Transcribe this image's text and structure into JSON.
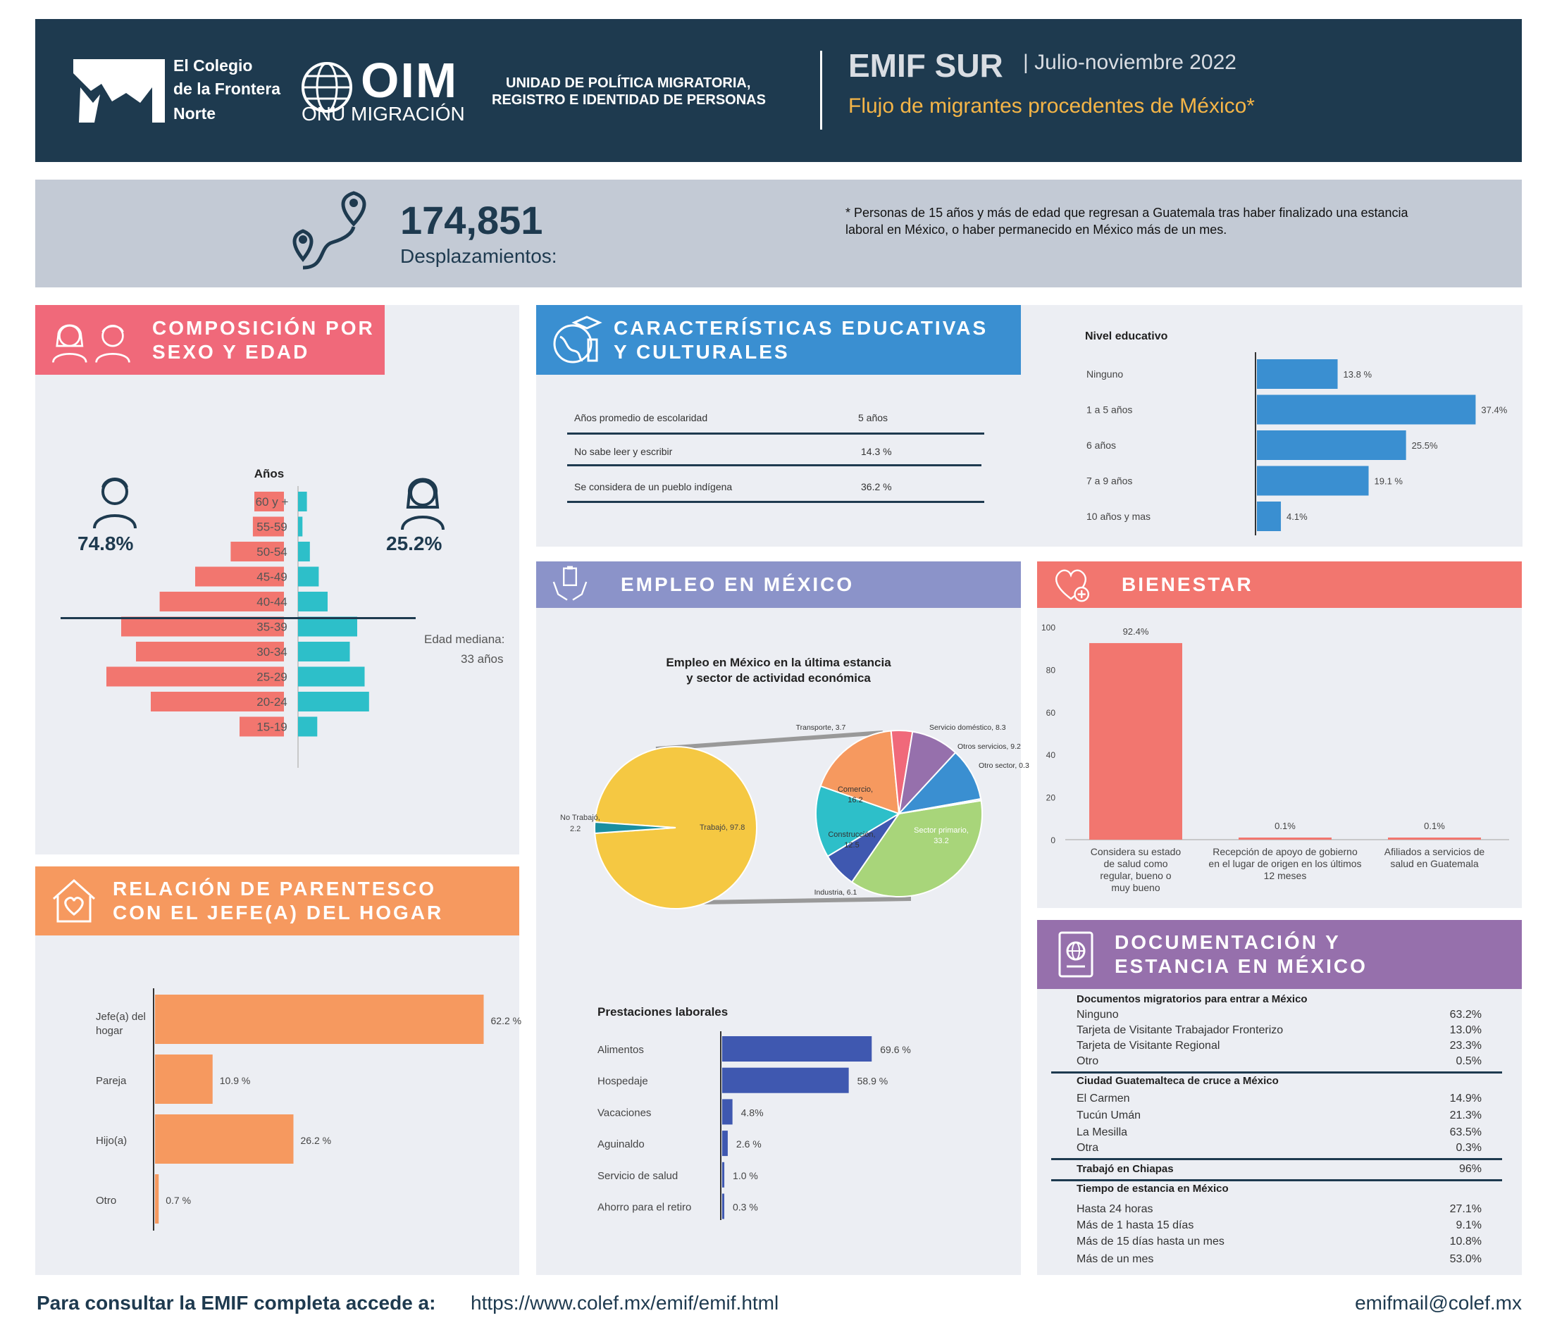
{
  "header": {
    "colef_lines": [
      "El Colegio",
      "de la Frontera",
      "Norte"
    ],
    "oim": "OIM",
    "onu": "ONU MIGRACIÓN",
    "unit_line1": "UNIDAD DE POLÍTICA MIGRATORIA,",
    "unit_line2": "REGISTRO E IDENTIDAD DE PERSONAS",
    "survey": "EMIF SUR",
    "period": "| Julio-noviembre 2022",
    "flow": "Flujo de migrantes procedentes de México*"
  },
  "summary": {
    "count": "174,851",
    "count_label": "Desplazamientos:",
    "note_line1": "* Personas de 15 años y más de edad que regresan a Guatemala tras haber finalizado una estancia",
    "note_line2": "laboral en México, o haber permanecido en México más de un mes."
  },
  "composicion": {
    "title_line1": "COMPOSICIÓN POR",
    "title_line2": "SEXO Y EDAD",
    "axis_title": "Años",
    "male_pct": "74.8%",
    "female_pct": "25.2%",
    "median_line1": "Edad mediana:",
    "median_line2": "33 años"
  },
  "educativas": {
    "title_line1": "CARACTERÍSTICAS EDUCATIVAS",
    "title_line2": "Y CULTURALES",
    "table": [
      {
        "label": "Años promedio de escolaridad",
        "value": "5 años"
      },
      {
        "label": "No sabe leer y escribir",
        "value": "14.3 %"
      },
      {
        "label": "Se considera de un pueblo indígena",
        "value": "36.2 %"
      }
    ]
  },
  "empleo": {
    "title": "EMPLEO EN MÉXICO",
    "pie_title_line1": "Empleo en México en la última estancia",
    "pie_title_line2": "y sector de actividad económica",
    "prest_title": "Prestaciones laborales"
  },
  "bienestar": {
    "title": "BIENESTAR"
  },
  "parentesco": {
    "title_line1": "RELACIÓN DE PARENTESCO",
    "title_line2": "CON EL JEFE(A) DEL HOGAR"
  },
  "documentacion": {
    "title_line1": "DOCUMENTACIÓN Y",
    "title_line2": "ESTANCIA EN MÉXICO",
    "sections": [
      {
        "heading": "Documentos migratorios para entrar a México",
        "rows": [
          {
            "label": "Ninguno",
            "value": "63.2%"
          },
          {
            "label": "Tarjeta de Visitante Trabajador Fronterizo",
            "value": "13.0%"
          },
          {
            "label": "Tarjeta de Visitante Regional",
            "value": "23.3%"
          },
          {
            "label": "Otro",
            "value": "0.5%"
          }
        ]
      },
      {
        "heading": "Ciudad Guatemalteca de cruce a México",
        "rows": [
          {
            "label": "El Carmen",
            "value": "14.9%"
          },
          {
            "label": "Tucún Umán",
            "value": "21.3%"
          },
          {
            "label": "La Mesilla",
            "value": "63.5%"
          },
          {
            "label": "Otra",
            "value": "0.3%"
          }
        ]
      },
      {
        "heading": "Trabajó en Chiapas",
        "value": "96%"
      },
      {
        "heading": "Tiempo de estancia en México",
        "rows": [
          {
            "label": "Hasta 24 horas",
            "value": "27.1%"
          },
          {
            "label": "Más de 1 hasta 15 días",
            "value": "9.1%"
          },
          {
            "label": "Más de 15 días hasta un mes",
            "value": "10.8%"
          },
          {
            "label": "Más de un mes",
            "value": "53.0%"
          }
        ]
      }
    ]
  },
  "footer": {
    "lead": "Para consultar la EMIF completa accede a:",
    "url": "https://www.colef.mx/emif/emif.html",
    "email": "emifmail@colef.mx"
  },
  "colors": {
    "navy": "#1e3a4f",
    "pink": "#f0697a",
    "blue": "#3a8fd1",
    "periwinkle": "#8b93c9",
    "salmon": "#f2766f",
    "orange": "#f6995f",
    "purple": "#9670ac",
    "teal": "#2dbfc9",
    "yellow": "#f5c842"
  },
  "chart_data": [
    {
      "type": "bar",
      "subtype": "population-pyramid",
      "categories": [
        "60 y +",
        "55-59",
        "50-54",
        "45-49",
        "40-44",
        "35-39",
        "30-34",
        "25-29",
        "20-24",
        "15-19"
      ],
      "series": [
        {
          "name": "74.8%",
          "values": [
            2.0,
            2.1,
            3.6,
            6.0,
            8.4,
            11.0,
            10.0,
            12.0,
            9.0,
            3.0
          ]
        },
        {
          "name": "25.2%",
          "values": [
            0.6,
            0.3,
            0.8,
            1.4,
            2.0,
            4.0,
            3.5,
            4.5,
            4.8,
            1.3
          ]
        }
      ],
      "title": "",
      "ylabel": "Años",
      "median_age": 33
    },
    {
      "type": "bar",
      "orientation": "horizontal",
      "title": "Nivel educativo",
      "categories": [
        "Ninguno",
        "1 a 5 años",
        "6 años",
        "7 a 9 años",
        "10 años y mas"
      ],
      "values": [
        13.8,
        37.4,
        25.5,
        19.1,
        4.1
      ],
      "labels": [
        "13.8 %",
        "37.4%",
        "25.5%",
        "19.1 %",
        "4.1%"
      ]
    },
    {
      "type": "pie",
      "title": "Empleo en México en la última estancia y sector de actividad económica",
      "categories": [
        "Trabajó",
        "No Trabajó"
      ],
      "values": [
        97.8,
        2.2
      ],
      "breakdown": {
        "categories": [
          "Sector primario",
          "Industria",
          "Construcción",
          "Comercio",
          "Transporte",
          "Servicio doméstico",
          "Otros servicios",
          "Otro sector"
        ],
        "values": [
          33.2,
          6.1,
          12.5,
          16.2,
          3.7,
          8.3,
          9.2,
          0.3
        ],
        "labels": [
          "Sector primario, 33.2",
          "Industria, 6.1",
          "Construcción, 12.5",
          "Comercio, 16.2",
          "Transporte, 3.7",
          "Servicio doméstico, 8.3",
          "Otros servicios, 9.2",
          "Otro sector, 0.3"
        ]
      }
    },
    {
      "type": "bar",
      "title": "",
      "categories": [
        "Considera su estado de salud como regular, bueno o muy bueno",
        "Recepción de apoyo de gobierno en el lugar de origen en los últimos 12 meses",
        "Afiliados a servicios de salud en Guatemala"
      ],
      "category_lines": [
        [
          "Considera su estado",
          "de salud como",
          "regular, bueno o",
          "muy bueno"
        ],
        [
          "Recepción de apoyo de gobierno",
          "en el lugar de origen en los últimos",
          "12 meses"
        ],
        [
          "Afiliados a servicios de",
          "salud en Guatemala"
        ]
      ],
      "values": [
        92.4,
        0.1,
        0.1
      ],
      "labels": [
        "92.4%",
        "0.1%",
        "0.1%"
      ],
      "ylim": [
        0,
        100
      ],
      "yticks": [
        0,
        20,
        40,
        60,
        80,
        100
      ]
    },
    {
      "type": "bar",
      "orientation": "horizontal",
      "title": "Prestaciones laborales",
      "categories": [
        "Alimentos",
        "Hospedaje",
        "Vacaciones",
        "Aguinaldo",
        "Servicio de salud",
        "Ahorro para el retiro"
      ],
      "values": [
        69.6,
        58.9,
        4.8,
        2.6,
        1.0,
        0.3
      ],
      "labels": [
        "69.6 %",
        "58.9 %",
        "4.8%",
        "2.6 %",
        "1.0 %",
        "0.3 %"
      ]
    },
    {
      "type": "bar",
      "orientation": "horizontal",
      "title": "",
      "categories": [
        "Jefe(a) del hogar",
        "Pareja",
        "Hijo(a)",
        "Otro"
      ],
      "category_lines": [
        [
          "Jefe(a) del",
          "hogar"
        ],
        [
          "Pareja"
        ],
        [
          "Hijo(a)"
        ],
        [
          "Otro"
        ]
      ],
      "values": [
        62.2,
        10.9,
        26.2,
        0.7
      ],
      "labels": [
        "62.2 %",
        "10.9 %",
        "26.2 %",
        "0.7 %"
      ]
    }
  ]
}
